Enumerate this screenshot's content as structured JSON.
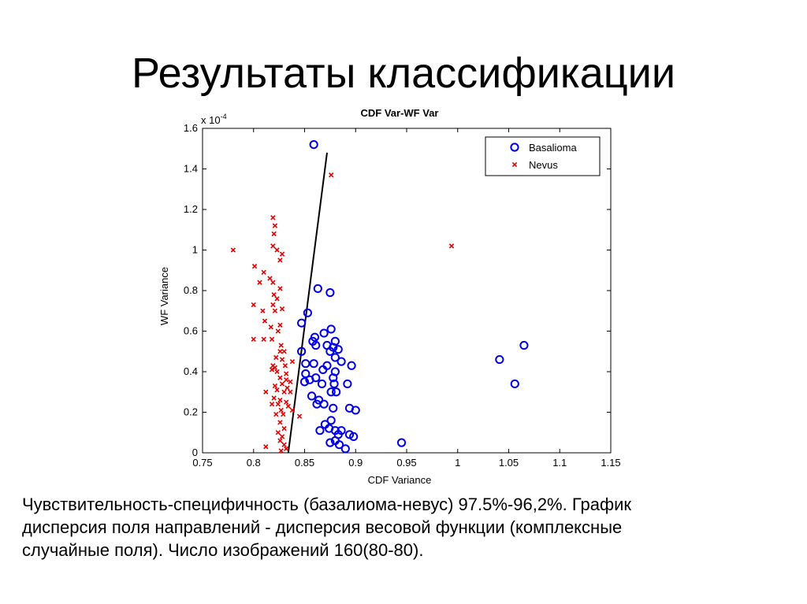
{
  "slide": {
    "title": "Результаты классификации",
    "caption_lines": [
      "Чувствительность-специфичность (базалиома-невус)  97.5%-96,2%. График",
      "дисперсия поля направлений - дисперсия весовой функции (комплексные",
      "случайные поля). Число изображений 160(80-80)."
    ]
  },
  "chart_data": {
    "type": "scatter",
    "title": "CDF Var-WF Var",
    "xlabel": "CDF Variance",
    "ylabel": "WF Variance",
    "y_exponent_label": "x 10",
    "y_exponent": "-4",
    "xlim": [
      0.75,
      1.15
    ],
    "ylim": [
      0,
      1.6
    ],
    "x_ticks": [
      "0.75",
      "0.8",
      "0.85",
      "0.9",
      "0.95",
      "1",
      "1.05",
      "1.1",
      "1.15"
    ],
    "y_ticks": [
      "0",
      "0.2",
      "0.4",
      "0.6",
      "0.8",
      "1",
      "1.2",
      "1.4",
      "1.6"
    ],
    "grid": false,
    "legend_position": "top-right",
    "colors": {
      "basalioma": "#0000e6",
      "nevus": "#e60000",
      "line": "#000000"
    },
    "decision_line": {
      "x": [
        0.834,
        0.872
      ],
      "y": [
        0.0,
        1.48
      ]
    },
    "series": [
      {
        "name": "Basalioma",
        "marker": "circle",
        "points": [
          [
            0.859,
            1.52
          ],
          [
            0.863,
            0.81
          ],
          [
            0.875,
            0.79
          ],
          [
            0.853,
            0.69
          ],
          [
            0.847,
            0.64
          ],
          [
            0.876,
            0.61
          ],
          [
            0.869,
            0.59
          ],
          [
            0.86,
            0.57
          ],
          [
            0.872,
            0.53
          ],
          [
            0.88,
            0.55
          ],
          [
            0.878,
            0.52
          ],
          [
            0.883,
            0.51
          ],
          [
            0.861,
            0.53
          ],
          [
            0.858,
            0.55
          ],
          [
            0.847,
            0.5
          ],
          [
            0.875,
            0.5
          ],
          [
            0.88,
            0.47
          ],
          [
            0.886,
            0.45
          ],
          [
            0.896,
            0.43
          ],
          [
            0.851,
            0.44
          ],
          [
            0.859,
            0.44
          ],
          [
            0.872,
            0.43
          ],
          [
            0.868,
            0.41
          ],
          [
            0.88,
            0.4
          ],
          [
            0.851,
            0.39
          ],
          [
            0.861,
            0.37
          ],
          [
            0.855,
            0.36
          ],
          [
            0.867,
            0.34
          ],
          [
            0.878,
            0.37
          ],
          [
            0.85,
            0.35
          ],
          [
            0.879,
            0.34
          ],
          [
            0.892,
            0.34
          ],
          [
            0.876,
            0.3
          ],
          [
            0.881,
            0.3
          ],
          [
            0.857,
            0.28
          ],
          [
            0.864,
            0.26
          ],
          [
            0.862,
            0.24
          ],
          [
            0.869,
            0.24
          ],
          [
            0.878,
            0.22
          ],
          [
            0.894,
            0.22
          ],
          [
            0.9,
            0.21
          ],
          [
            0.876,
            0.16
          ],
          [
            0.865,
            0.11
          ],
          [
            0.87,
            0.14
          ],
          [
            0.874,
            0.12
          ],
          [
            0.88,
            0.11
          ],
          [
            0.883,
            0.09
          ],
          [
            0.886,
            0.11
          ],
          [
            0.894,
            0.09
          ],
          [
            0.898,
            0.08
          ],
          [
            0.88,
            0.06
          ],
          [
            0.875,
            0.05
          ],
          [
            0.884,
            0.04
          ],
          [
            0.89,
            0.02
          ],
          [
            0.945,
            0.05
          ],
          [
            1.041,
            0.46
          ],
          [
            1.056,
            0.34
          ],
          [
            1.065,
            0.53
          ]
        ]
      },
      {
        "name": "Nevus",
        "marker": "x",
        "points": [
          [
            0.876,
            1.37
          ],
          [
            0.819,
            1.16
          ],
          [
            0.821,
            1.12
          ],
          [
            0.82,
            1.08
          ],
          [
            0.819,
            1.02
          ],
          [
            0.823,
            1.0
          ],
          [
            0.828,
            0.98
          ],
          [
            0.826,
            0.95
          ],
          [
            0.78,
            1.0
          ],
          [
            0.801,
            0.92
          ],
          [
            0.81,
            0.89
          ],
          [
            0.816,
            0.86
          ],
          [
            0.819,
            0.84
          ],
          [
            0.806,
            0.84
          ],
          [
            0.826,
            0.81
          ],
          [
            0.82,
            0.78
          ],
          [
            0.823,
            0.76
          ],
          [
            0.819,
            0.73
          ],
          [
            0.8,
            0.73
          ],
          [
            0.828,
            0.71
          ],
          [
            0.809,
            0.7
          ],
          [
            0.821,
            0.7
          ],
          [
            0.811,
            0.65
          ],
          [
            0.817,
            0.62
          ],
          [
            0.826,
            0.63
          ],
          [
            0.824,
            0.6
          ],
          [
            0.8,
            0.56
          ],
          [
            0.81,
            0.56
          ],
          [
            0.818,
            0.56
          ],
          [
            0.827,
            0.53
          ],
          [
            0.83,
            0.5
          ],
          [
            0.826,
            0.5
          ],
          [
            0.822,
            0.47
          ],
          [
            0.828,
            0.46
          ],
          [
            0.831,
            0.43
          ],
          [
            0.819,
            0.43
          ],
          [
            0.821,
            0.42
          ],
          [
            0.818,
            0.41
          ],
          [
            0.823,
            0.4
          ],
          [
            0.832,
            0.39
          ],
          [
            0.826,
            0.37
          ],
          [
            0.832,
            0.36
          ],
          [
            0.836,
            0.35
          ],
          [
            0.828,
            0.34
          ],
          [
            0.821,
            0.33
          ],
          [
            0.833,
            0.32
          ],
          [
            0.823,
            0.31
          ],
          [
            0.83,
            0.3
          ],
          [
            0.836,
            0.3
          ],
          [
            0.812,
            0.3
          ],
          [
            0.82,
            0.27
          ],
          [
            0.826,
            0.26
          ],
          [
            0.832,
            0.25
          ],
          [
            0.818,
            0.24
          ],
          [
            0.824,
            0.24
          ],
          [
            0.834,
            0.23
          ],
          [
            0.827,
            0.21
          ],
          [
            0.829,
            0.19
          ],
          [
            0.822,
            0.19
          ],
          [
            0.838,
            0.21
          ],
          [
            0.826,
            0.15
          ],
          [
            0.83,
            0.12
          ],
          [
            0.824,
            0.1
          ],
          [
            0.828,
            0.08
          ],
          [
            0.826,
            0.06
          ],
          [
            0.83,
            0.04
          ],
          [
            0.812,
            0.03
          ],
          [
            0.832,
            0.02
          ],
          [
            0.827,
            0.01
          ],
          [
            0.845,
            0.18
          ],
          [
            0.838,
            0.45
          ],
          [
            0.994,
            1.02
          ]
        ]
      }
    ]
  }
}
